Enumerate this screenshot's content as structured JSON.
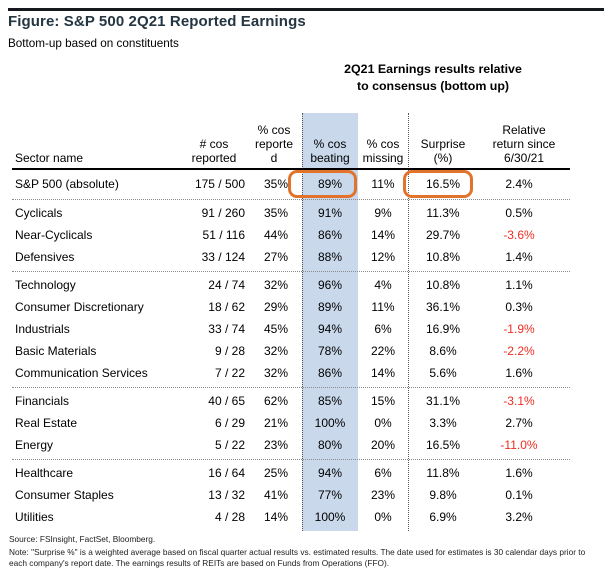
{
  "colors": {
    "accent_orange": "#e2732c",
    "band_blue": "#c9d8ea",
    "negative_red": "#ee2d20",
    "title_color": "#243642"
  },
  "figure": {
    "title": "Figure: S&P 500 2Q21 Reported Earnings",
    "subtitle": "Bottom-up based on constituents",
    "caption_line1": "2Q21 Earnings results relative",
    "caption_line2": "to consensus (bottom up)"
  },
  "table": {
    "columns": [
      {
        "id": "sector",
        "lines": [
          "Sector name"
        ]
      },
      {
        "id": "cos-reported",
        "lines": [
          "# cos",
          "reported"
        ]
      },
      {
        "id": "pct-reported",
        "lines": [
          "% cos",
          "reporte",
          "d"
        ]
      },
      {
        "id": "pct-beating",
        "lines": [
          "% cos",
          "beating"
        ]
      },
      {
        "id": "pct-missing",
        "lines": [
          "% cos",
          "missing"
        ]
      },
      {
        "id": "surprise",
        "lines": [
          "Surprise",
          "(%)"
        ]
      },
      {
        "id": "relative-return",
        "lines": [
          "Relative",
          "return since",
          "6/30/21"
        ]
      }
    ],
    "groups": [
      {
        "rows": [
          {
            "sector": "S&P 500 (absolute)",
            "reported": "175 / 500",
            "pct_reported": "35%",
            "beating": "89%",
            "missing": "11%",
            "surprise": "16.5%",
            "relative": "2.4%",
            "circled": true
          }
        ]
      },
      {
        "rows": [
          {
            "sector": "Cyclicals",
            "reported": "91 / 260",
            "pct_reported": "35%",
            "beating": "91%",
            "missing": "9%",
            "surprise": "11.3%",
            "relative": "0.5%"
          },
          {
            "sector": "Near-Cyclicals",
            "reported": "51 / 116",
            "pct_reported": "44%",
            "beating": "86%",
            "missing": "14%",
            "surprise": "29.7%",
            "relative": "-3.6%"
          },
          {
            "sector": "Defensives",
            "reported": "33 / 124",
            "pct_reported": "27%",
            "beating": "88%",
            "missing": "12%",
            "surprise": "10.8%",
            "relative": "1.4%"
          }
        ]
      },
      {
        "rows": [
          {
            "sector": "Technology",
            "reported": "24 / 74",
            "pct_reported": "32%",
            "beating": "96%",
            "missing": "4%",
            "surprise": "10.8%",
            "relative": "1.1%"
          },
          {
            "sector": "Consumer Discretionary",
            "reported": "18 / 62",
            "pct_reported": "29%",
            "beating": "89%",
            "missing": "11%",
            "surprise": "36.1%",
            "relative": "0.3%"
          },
          {
            "sector": "Industrials",
            "reported": "33 / 74",
            "pct_reported": "45%",
            "beating": "94%",
            "missing": "6%",
            "surprise": "16.9%",
            "relative": "-1.9%"
          },
          {
            "sector": "Basic Materials",
            "reported": "9 / 28",
            "pct_reported": "32%",
            "beating": "78%",
            "missing": "22%",
            "surprise": "8.6%",
            "relative": "-2.2%"
          },
          {
            "sector": "Communication Services",
            "reported": "7 / 22",
            "pct_reported": "32%",
            "beating": "86%",
            "missing": "14%",
            "surprise": "5.6%",
            "relative": "1.6%"
          }
        ]
      },
      {
        "rows": [
          {
            "sector": "Financials",
            "reported": "40 / 65",
            "pct_reported": "62%",
            "beating": "85%",
            "missing": "15%",
            "surprise": "31.1%",
            "relative": "-3.1%"
          },
          {
            "sector": "Real Estate",
            "reported": "6 / 29",
            "pct_reported": "21%",
            "beating": "100%",
            "missing": "0%",
            "surprise": "3.3%",
            "relative": "2.7%"
          },
          {
            "sector": "Energy",
            "reported": "5 / 22",
            "pct_reported": "23%",
            "beating": "80%",
            "missing": "20%",
            "surprise": "16.5%",
            "relative": "-11.0%"
          }
        ]
      },
      {
        "rows": [
          {
            "sector": "Healthcare",
            "reported": "16 / 64",
            "pct_reported": "25%",
            "beating": "94%",
            "missing": "6%",
            "surprise": "11.8%",
            "relative": "1.6%"
          },
          {
            "sector": "Consumer Staples",
            "reported": "13 / 32",
            "pct_reported": "41%",
            "beating": "77%",
            "missing": "23%",
            "surprise": "9.8%",
            "relative": "0.1%"
          },
          {
            "sector": "Utilities",
            "reported": "4 / 28",
            "pct_reported": "14%",
            "beating": "100%",
            "missing": "0%",
            "surprise": "6.9%",
            "relative": "3.2%"
          }
        ]
      }
    ]
  },
  "footer": {
    "source": "Source: FSInsight, FactSet, Bloomberg.",
    "note": "Note: \"Surprise %\" is a weighted average based on fiscal quarter actual results vs. estimated results.  The date used for estimates is 30 calendar days prior to each company's report date. The earnings results of REITs are based on Funds from Operations (FFO)."
  }
}
